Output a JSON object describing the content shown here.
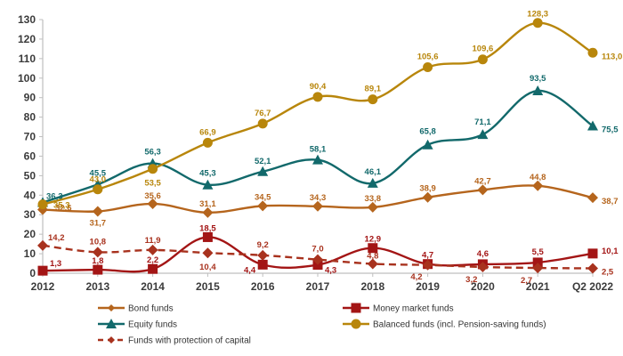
{
  "chart_data": {
    "type": "line",
    "title": "",
    "xlabel": "",
    "ylabel": "",
    "ylim": [
      0,
      130
    ],
    "yticks": [
      0,
      10,
      20,
      30,
      40,
      50,
      60,
      70,
      80,
      90,
      100,
      110,
      120,
      130
    ],
    "ytick_labels": [
      "0",
      "10",
      "20",
      "30",
      "40",
      "50",
      "60",
      "70",
      "80",
      "90",
      "100",
      "110",
      "120",
      "130"
    ],
    "categories": [
      "2012",
      "2013",
      "2014",
      "2015",
      "2016",
      "2017",
      "2018",
      "2019",
      "2020",
      "2021",
      "Q2 2022"
    ],
    "grid": false,
    "legend_position": "bottom",
    "series": [
      {
        "name": "Bond funds",
        "color": "#b5651d",
        "marker": "diamond",
        "dash": false,
        "values": [
          32.6,
          31.7,
          35.6,
          31.1,
          34.5,
          34.3,
          33.8,
          38.9,
          42.7,
          44.8,
          38.7
        ],
        "labels": [
          "32,6",
          "31,7",
          "35,6",
          "31,1",
          "34,5",
          "34,3",
          "33,8",
          "38,9",
          "42,7",
          "44,8",
          "38,7"
        ]
      },
      {
        "name": "Money market funds",
        "color": "#a31515",
        "marker": "square",
        "dash": false,
        "values": [
          1.3,
          1.8,
          2.2,
          18.5,
          4.4,
          4.3,
          12.9,
          4.7,
          4.6,
          5.5,
          10.1
        ],
        "labels": [
          "1,3",
          "1,8",
          "2,2",
          "18,5",
          "4,4",
          "4,3",
          "12,9",
          "4,7",
          "4,6",
          "5,5",
          "10,1"
        ]
      },
      {
        "name": "Equity funds",
        "color": "#12696b",
        "marker": "triangle",
        "dash": false,
        "values": [
          36.3,
          45.5,
          56.3,
          45.3,
          52.1,
          58.1,
          46.1,
          65.8,
          71.1,
          93.5,
          75.5
        ],
        "labels": [
          "36,3",
          "45,5",
          "56,3",
          "45,3",
          "52,1",
          "58,1",
          "46,1",
          "65,8",
          "71,1",
          "93,5",
          "75,5"
        ]
      },
      {
        "name": "Balanced funds (incl. Pension-saving funds)",
        "color": "#b8860b",
        "marker": "circle",
        "dash": false,
        "values": [
          35.3,
          43.0,
          53.5,
          66.9,
          76.7,
          90.4,
          89.1,
          105.6,
          109.6,
          128.3,
          113.0
        ],
        "labels": [
          "35,3",
          "43,0",
          "53,5",
          "66,9",
          "76,7",
          "90,4",
          "89,1",
          "105,6",
          "109,6",
          "128,3",
          "113,0"
        ]
      },
      {
        "name": "Funds with protection of capital",
        "color": "#a8321e",
        "marker": "diamond",
        "dash": true,
        "values": [
          14.2,
          10.8,
          11.9,
          10.4,
          9.2,
          7.0,
          4.8,
          4.2,
          3.2,
          2.7,
          2.5
        ],
        "labels": [
          "14,2",
          "10,8",
          "11,9",
          "10,4",
          "9,2",
          "7,0",
          "4,8",
          "4,2",
          "3,2",
          "2,7",
          "2,5"
        ]
      }
    ]
  }
}
